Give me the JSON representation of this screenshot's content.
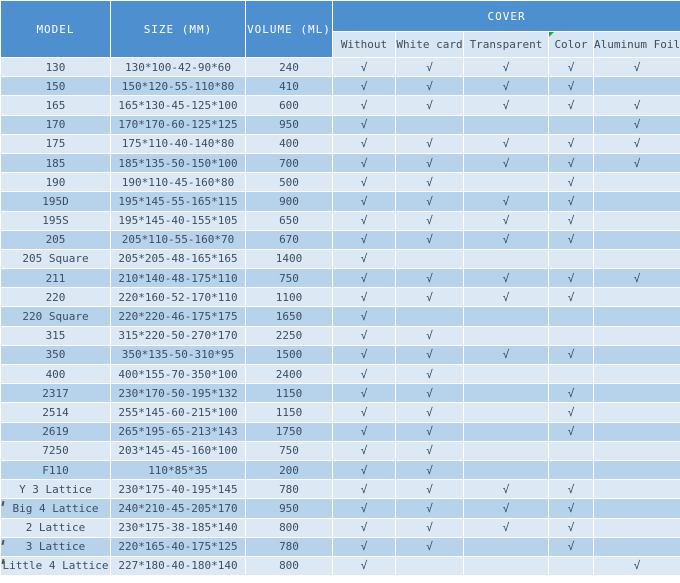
{
  "colors": {
    "header_bg": "#4E8FD0",
    "header_text": "#FFFFFF",
    "row_light": "#DCE9F5",
    "row_dark": "#B7D3EC",
    "subheader_bg": "#D8E5F2",
    "text": "#3D4D60",
    "check": "#344B63",
    "comment_marker_green": "#21A34A"
  },
  "table": {
    "headers": {
      "model": "MODEL",
      "size": "SIZE (MM)",
      "volume": "VOLUME (ML)",
      "cover": "COVER"
    },
    "cover_options": [
      "Without",
      "White card",
      "Transparent",
      "Color",
      "Aluminum Foil"
    ],
    "check_glyph": "√",
    "rows": [
      {
        "model": "130",
        "size": "130*100-42-90*60",
        "volume": "240",
        "covers": [
          true,
          true,
          true,
          true,
          true
        ]
      },
      {
        "model": "150",
        "size": "150*120-55-110*80",
        "volume": "410",
        "covers": [
          true,
          true,
          true,
          true,
          false
        ]
      },
      {
        "model": "165",
        "size": "165*130-45-125*100",
        "volume": "600",
        "covers": [
          true,
          true,
          true,
          true,
          true
        ]
      },
      {
        "model": "170",
        "size": "170*170-60-125*125",
        "volume": "950",
        "covers": [
          true,
          false,
          false,
          false,
          true
        ]
      },
      {
        "model": "175",
        "size": "175*110-40-140*80",
        "volume": "400",
        "covers": [
          true,
          true,
          true,
          true,
          true
        ]
      },
      {
        "model": "185",
        "size": "185*135-50-150*100",
        "volume": "700",
        "covers": [
          true,
          true,
          true,
          true,
          true
        ]
      },
      {
        "model": "190",
        "size": "190*110-45-160*80",
        "volume": "500",
        "covers": [
          true,
          true,
          false,
          true,
          false
        ]
      },
      {
        "model": "195D",
        "size": "195*145-55-165*115",
        "volume": "900",
        "covers": [
          true,
          true,
          true,
          true,
          false
        ]
      },
      {
        "model": "195S",
        "size": "195*145-40-155*105",
        "volume": "650",
        "covers": [
          true,
          true,
          true,
          true,
          false
        ]
      },
      {
        "model": "205",
        "size": "205*110-55-160*70",
        "volume": "670",
        "covers": [
          true,
          true,
          true,
          true,
          false
        ]
      },
      {
        "model": "205 Square",
        "size": "205*205-48-165*165",
        "volume": "1400",
        "covers": [
          true,
          false,
          false,
          false,
          false
        ]
      },
      {
        "model": "211",
        "size": "210*140-48-175*110",
        "volume": "750",
        "covers": [
          true,
          true,
          true,
          true,
          true
        ]
      },
      {
        "model": "220",
        "size": "220*160-52-170*110",
        "volume": "1100",
        "covers": [
          true,
          true,
          true,
          true,
          false
        ]
      },
      {
        "model": "220 Square",
        "size": "220*220-46-175*175",
        "volume": "1650",
        "covers": [
          true,
          false,
          false,
          false,
          false
        ]
      },
      {
        "model": "315",
        "size": "315*220-50-270*170",
        "volume": "2250",
        "covers": [
          true,
          true,
          false,
          false,
          false
        ]
      },
      {
        "model": "350",
        "size": "350*135-50-310*95",
        "volume": "1500",
        "covers": [
          true,
          true,
          true,
          true,
          false
        ]
      },
      {
        "model": "400",
        "size": "400*155-70-350*100",
        "volume": "2400",
        "covers": [
          true,
          true,
          false,
          false,
          false
        ]
      },
      {
        "model": "2317",
        "size": "230*170-50-195*132",
        "volume": "1150",
        "covers": [
          true,
          true,
          false,
          true,
          false
        ]
      },
      {
        "model": "2514",
        "size": "255*145-60-215*100",
        "volume": "1150",
        "covers": [
          true,
          true,
          false,
          true,
          false
        ]
      },
      {
        "model": "2619",
        "size": "265*195-65-213*143",
        "volume": "1750",
        "covers": [
          true,
          true,
          false,
          true,
          false
        ]
      },
      {
        "model": "7250",
        "size": "203*145-45-160*100",
        "volume": "750",
        "covers": [
          true,
          true,
          false,
          false,
          false
        ]
      },
      {
        "model": "F110",
        "size": "110*85*35",
        "volume": "200",
        "covers": [
          true,
          true,
          false,
          false,
          false
        ]
      },
      {
        "model": "Y 3 Lattice",
        "size": "230*175-40-195*145",
        "volume": "780",
        "covers": [
          true,
          true,
          true,
          true,
          false
        ]
      },
      {
        "model": "Big 4 Lattice",
        "size": "240*210-45-205*170",
        "volume": "950",
        "covers": [
          true,
          true,
          true,
          true,
          false
        ],
        "mark": true
      },
      {
        "model": "2 Lattice",
        "size": "230*175-38-185*140",
        "volume": "800",
        "covers": [
          true,
          true,
          true,
          true,
          false
        ]
      },
      {
        "model": "3 Lattice",
        "size": "220*165-40-175*125",
        "volume": "780",
        "covers": [
          true,
          true,
          false,
          true,
          false
        ],
        "mark": true
      },
      {
        "model": "Little 4 Lattice",
        "size": "227*180-40-180*140",
        "volume": "800",
        "covers": [
          true,
          false,
          false,
          false,
          true
        ],
        "mark": true
      }
    ]
  }
}
